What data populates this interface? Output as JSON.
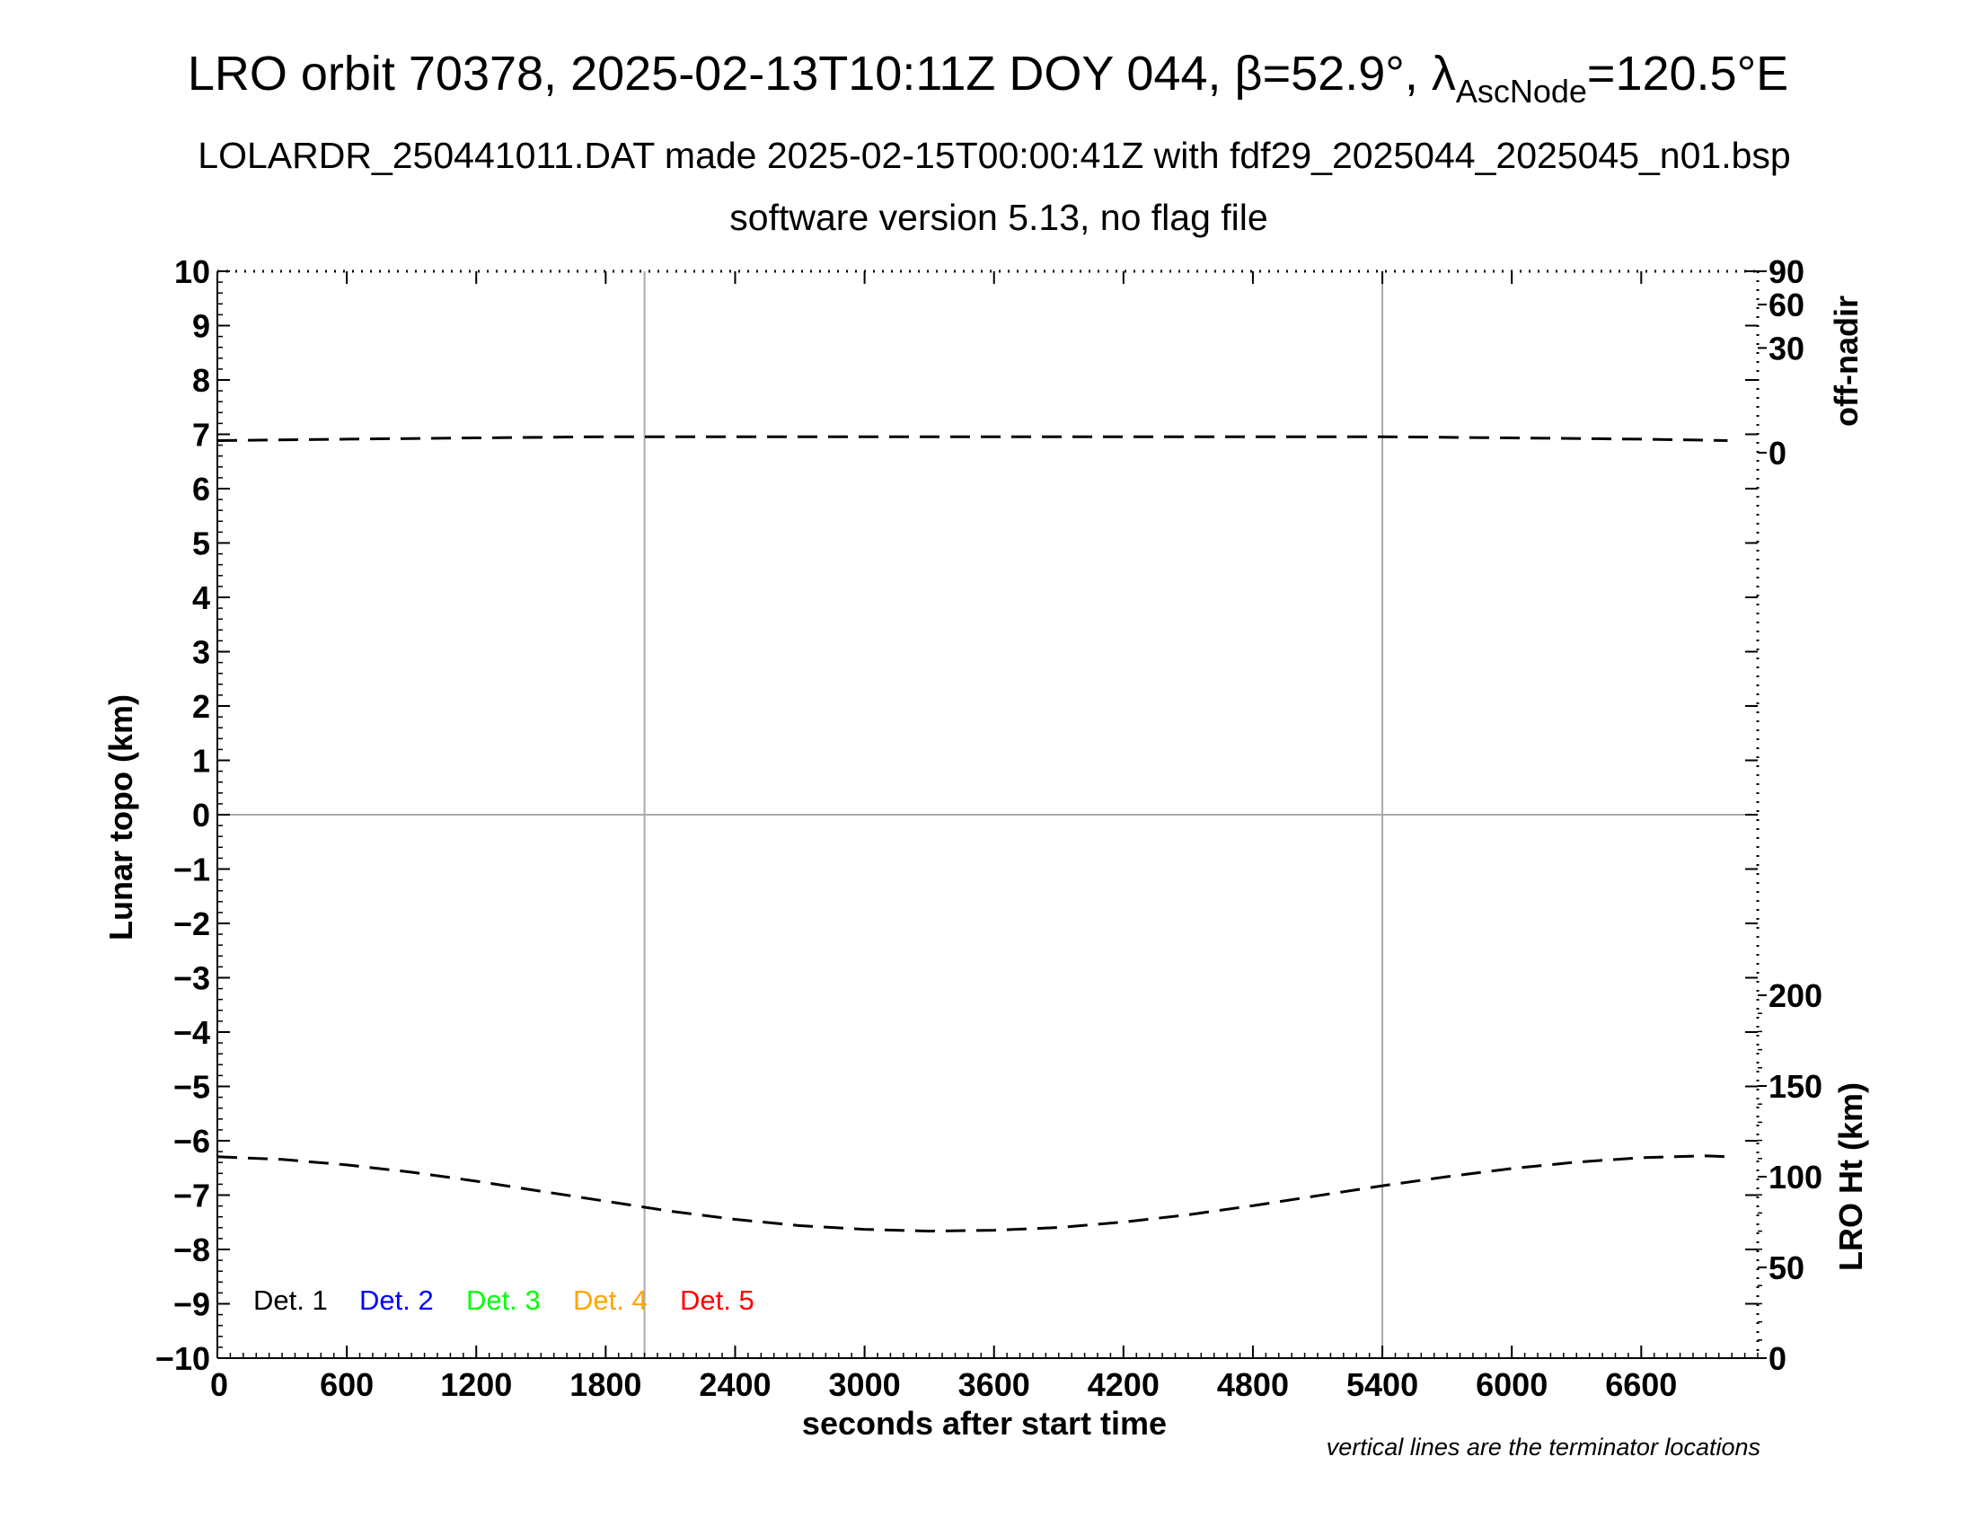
{
  "chart_data": {
    "type": "line",
    "title_prefix": "LRO orbit 70378, 2025-02-13T10:11Z DOY 044, β=52.9°, λ",
    "title_subscript": "AscNode",
    "title_suffix": "=120.5°E",
    "subtitle_1": "LOLARDR_250441011.DAT made 2025-02-15T00:00:41Z with fdf29_2025044_2025045_n01.bsp",
    "subtitle_2": "software version 5.13, no flag file",
    "xlabel": "seconds after start time",
    "ylabel_left": "Lunar topo (km)",
    "ylabel_right_top": "off-nadir",
    "ylabel_right_bottom": "LRO Ht (km)",
    "footnote": "vertical lines are the terminator locations",
    "xlim": [
      0,
      7140
    ],
    "xticks": [
      0,
      600,
      1200,
      1800,
      2400,
      3000,
      3600,
      4200,
      4800,
      5400,
      6000,
      6600
    ],
    "ylim": [
      -10,
      10
    ],
    "yticks": [
      10,
      9,
      8,
      7,
      6,
      5,
      4,
      3,
      2,
      1,
      0,
      -1,
      -2,
      -3,
      -4,
      -5,
      -6,
      -7,
      -8,
      -9,
      -10
    ],
    "ytick_labels": [
      "10",
      "9",
      "8",
      "7",
      "6",
      "5",
      "4",
      "3",
      "2",
      "1",
      "0",
      "−1",
      "−2",
      "−3",
      "−4",
      "−5",
      "−6",
      "−7",
      "−8",
      "−9",
      "−10"
    ],
    "right_top_axis": {
      "ticks": [
        0,
        30,
        60,
        90
      ],
      "labels": [
        "0",
        "30",
        "60",
        "90"
      ]
    },
    "right_bottom_axis": {
      "range": [
        0,
        200
      ],
      "ticks": [
        0,
        50,
        100,
        150,
        200
      ],
      "labels": [
        "0",
        "50",
        "100",
        "150",
        "200"
      ]
    },
    "terminator_lines_x": [
      1980,
      5400
    ],
    "grid_horizontal_y": [
      0
    ],
    "legend": [
      {
        "label": "Det. 1",
        "color": "#000000"
      },
      {
        "label": "Det. 2",
        "color": "#0000ff"
      },
      {
        "label": "Det. 3",
        "color": "#00ff00"
      },
      {
        "label": "Det. 4",
        "color": "#ffa500"
      },
      {
        "label": "Det. 5",
        "color": "#ff0000"
      }
    ],
    "legend_placement": "bottom-left",
    "series": [
      {
        "axis": "off-nadir",
        "style": "dashed",
        "color": "#000000",
        "x": [
          0,
          600,
          1200,
          1800,
          2400,
          3000,
          3600,
          4200,
          4800,
          5400,
          6000,
          6600,
          7000
        ],
        "values": [
          0.4,
          0.5,
          0.6,
          0.7,
          0.7,
          0.7,
          0.7,
          0.7,
          0.7,
          0.7,
          0.6,
          0.5,
          0.4
        ]
      },
      {
        "axis": "LRO Ht (km)",
        "style": "dashed",
        "color": "#000000",
        "x": [
          0,
          300,
          600,
          900,
          1200,
          1500,
          1800,
          2100,
          2400,
          2700,
          3000,
          3300,
          3600,
          3900,
          4200,
          4500,
          4800,
          5100,
          5400,
          5700,
          6000,
          6300,
          6600,
          6900,
          7000
        ],
        "values": [
          111,
          109.5,
          106.5,
          102.5,
          97.5,
          92,
          86.5,
          81,
          76.5,
          73,
          71,
          70,
          70.5,
          72,
          75,
          79,
          84,
          89.5,
          95,
          100,
          104.5,
          108,
          110.5,
          111.5,
          111
        ]
      }
    ]
  }
}
